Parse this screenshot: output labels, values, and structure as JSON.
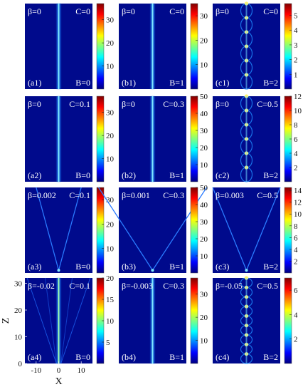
{
  "chart_data": {
    "type": "heatmap",
    "xlabel": "X",
    "ylabel": "Z",
    "x_ticks": [
      "-10",
      "0",
      "10"
    ],
    "y_ticks": [
      "0",
      "10",
      "20",
      "30"
    ],
    "xlim": [
      -15,
      15
    ],
    "ylim": [
      0,
      32
    ],
    "colormap": "jet",
    "panels": [
      {
        "id": "a1",
        "tag": "(a1)",
        "beta": "β=0",
        "C": "C=0",
        "B": "B=0",
        "pattern": "center-beam",
        "cb_max": 37,
        "cb_ticks": [
          "10",
          "20",
          "30"
        ]
      },
      {
        "id": "b1",
        "tag": "(b1)",
        "beta": "β=0",
        "C": "C=0",
        "B": "B=1",
        "pattern": "center-beam",
        "cb_max": 35,
        "cb_ticks": [
          "10",
          "20",
          "30"
        ]
      },
      {
        "id": "c1",
        "tag": "(c1)",
        "beta": "β=0",
        "C": "C=0",
        "B": "B=2",
        "pattern": "breather",
        "cb_max": 5.8,
        "cb_ticks": [
          "1",
          "2",
          "3",
          "4",
          "5"
        ]
      },
      {
        "id": "a2",
        "tag": "(a2)",
        "beta": "β=0",
        "C": "C=0.1",
        "B": "B=0",
        "pattern": "center-beam",
        "cb_max": 37,
        "cb_ticks": [
          "10",
          "20",
          "30"
        ]
      },
      {
        "id": "b2",
        "tag": "(b2)",
        "beta": "β=0",
        "C": "C=0.3",
        "B": "B=1",
        "pattern": "center-beam",
        "cb_max": 50,
        "cb_ticks": [
          "10",
          "20",
          "30",
          "40",
          "50"
        ]
      },
      {
        "id": "c2",
        "tag": "(c2)",
        "beta": "β=0",
        "C": "C=0.5",
        "B": "B=2",
        "pattern": "breather",
        "cb_max": 12,
        "cb_ticks": [
          "2",
          "4",
          "6",
          "8",
          "10",
          "12"
        ]
      },
      {
        "id": "a3",
        "tag": "(a3)",
        "beta": "β=0.002",
        "C": "C=0.1",
        "B": "B=0",
        "pattern": "v-narrow",
        "cb_max": 35,
        "cb_ticks": [
          "10",
          "20",
          "30"
        ]
      },
      {
        "id": "b3",
        "tag": "(b3)",
        "beta": "β=0.001",
        "C": "C=0.3",
        "B": "B=1",
        "pattern": "v-wide",
        "cb_max": 50,
        "cb_ticks": [
          "10",
          "20",
          "30",
          "40",
          "50"
        ]
      },
      {
        "id": "c3",
        "tag": "(c3)",
        "beta": "β=0.003",
        "C": "C=0.5",
        "B": "B=2",
        "pattern": "v-mid",
        "cb_max": 14.5,
        "cb_ticks": [
          "2",
          "4",
          "6",
          "8",
          "10",
          "12",
          "14"
        ]
      },
      {
        "id": "a4",
        "tag": "(a4)",
        "beta": "β=-0.02",
        "C": "C=0.1",
        "B": "B=0",
        "pattern": "center-beam-side",
        "cb_max": 20,
        "cb_ticks": [
          "5",
          "10",
          "15",
          "20"
        ]
      },
      {
        "id": "b4",
        "tag": "(b4)",
        "beta": "β=-0.003",
        "C": "C=0.3",
        "B": "B=1",
        "pattern": "center-beam",
        "cb_max": 37,
        "cb_ticks": [
          "10",
          "20",
          "30"
        ]
      },
      {
        "id": "c4",
        "tag": "(c4)",
        "beta": "β=-0.05",
        "C": "C=0.5",
        "B": "B=2",
        "pattern": "breather-dense",
        "cb_max": 7,
        "cb_ticks": [
          "2",
          "4",
          "6"
        ]
      }
    ]
  }
}
